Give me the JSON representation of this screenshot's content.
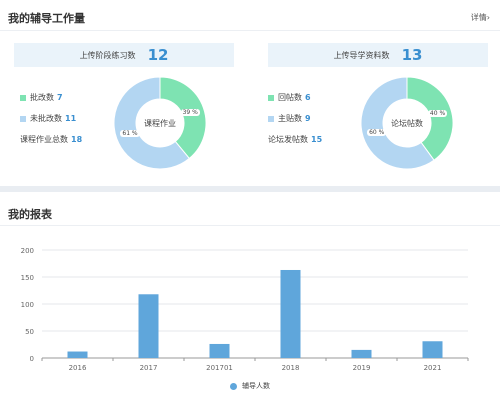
{
  "workload": {
    "title": "我的辅导工作量",
    "details_link": "详情›",
    "homework": {
      "banner_label": "上传阶段练习数",
      "banner_value": "12",
      "legend": [
        {
          "label": "批改数",
          "value": "7",
          "color": "#7ee3b2"
        },
        {
          "label": "未批改数",
          "value": "11",
          "color": "#b3d6f2"
        },
        {
          "label": "课程作业总数",
          "value": "18",
          "color": ""
        }
      ],
      "donut_center": "课程作业",
      "slices": [
        {
          "label": "39 %",
          "fraction": 0.39,
          "color": "#7ee3b2"
        },
        {
          "label": "61 %",
          "fraction": 0.61,
          "color": "#b3d6f2"
        }
      ]
    },
    "forum": {
      "banner_label": "上传导学资料数",
      "banner_value": "13",
      "legend": [
        {
          "label": "回帖数",
          "value": "6",
          "color": "#7ee3b2"
        },
        {
          "label": "主贴数",
          "value": "9",
          "color": "#b3d6f2"
        },
        {
          "label": "论坛发帖数",
          "value": "15",
          "color": ""
        }
      ],
      "donut_center": "论坛帖数",
      "slices": [
        {
          "label": "40 %",
          "fraction": 0.4,
          "color": "#7ee3b2"
        },
        {
          "label": "60 %",
          "fraction": 0.6,
          "color": "#b3d6f2"
        }
      ]
    }
  },
  "report": {
    "title": "我的报表",
    "legend_label": "辅导人数"
  },
  "chart_data": {
    "type": "bar",
    "categories": [
      "2016",
      "2017",
      "201701",
      "2018",
      "2019",
      "2021"
    ],
    "series": [
      {
        "name": "辅导人数",
        "values": [
          12,
          118,
          26,
          163,
          15,
          31
        ]
      }
    ],
    "ylim": [
      0,
      200
    ],
    "yticks": [
      0,
      50,
      100,
      150,
      200
    ],
    "legend": "bottom-center",
    "grid": true,
    "color": "#5fa6db"
  }
}
